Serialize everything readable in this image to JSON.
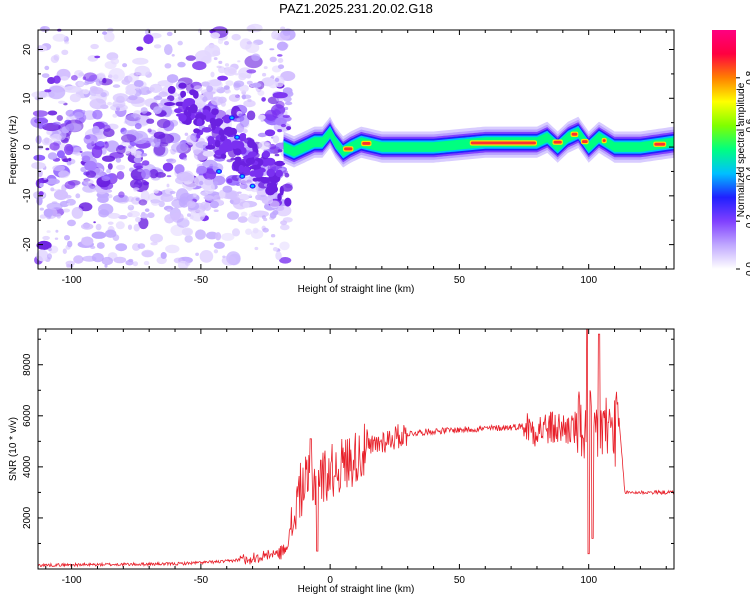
{
  "title": "PAZ1.2025.231.20.02.G18",
  "chart_data": [
    {
      "type": "heatmap",
      "xlabel": "Height of straight line (km)",
      "ylabel": "Frequency (Hz)",
      "xlim": [
        -113,
        133
      ],
      "ylim": [
        -25,
        24
      ],
      "xticks": [
        -100,
        -50,
        0,
        50,
        100
      ],
      "yticks": [
        -20,
        -10,
        0,
        10,
        20
      ],
      "colorbar": {
        "label": "Normalized spectral amplitude",
        "range": [
          0,
          1
        ],
        "ticks": [
          "0.0",
          "0.2",
          "0.4",
          "0.6",
          "0.8"
        ],
        "tick_values": [
          0,
          0.2,
          0.4,
          0.6,
          0.8
        ],
        "colormap": [
          "#ffffff",
          "#c0a8ff",
          "#8040ff",
          "#2020ff",
          "#00c0ff",
          "#00ff80",
          "#80ff00",
          "#ffff00",
          "#ff8000",
          "#ff0040",
          "#ff0080"
        ]
      },
      "ridge": {
        "x": [
          -18,
          -14,
          -10,
          -6,
          -3,
          0,
          2,
          5,
          8,
          12,
          20,
          40,
          60,
          75,
          80,
          84,
          88,
          92,
          96,
          100,
          104,
          110,
          120,
          133
        ],
        "y": [
          0,
          -1,
          0,
          1,
          1,
          3,
          1,
          -1,
          0,
          1,
          0,
          0,
          1,
          1,
          1,
          2,
          0,
          2,
          3,
          0,
          2,
          0,
          0,
          1
        ]
      }
    },
    {
      "type": "line",
      "xlabel": "Height of straight line (km)",
      "ylabel": "SNR (10 * v/v)",
      "xlim": [
        -113,
        133
      ],
      "ylim": [
        0,
        9400
      ],
      "xticks": [
        -100,
        -50,
        0,
        50,
        100
      ],
      "yticks": [
        2000,
        4000,
        6000,
        8000
      ],
      "color": "#e8202a",
      "envelope": {
        "x": [
          -113,
          -60,
          -40,
          -25,
          -18,
          -15,
          -12,
          -10,
          -5,
          0,
          5,
          10,
          20,
          30,
          40,
          50,
          60,
          70,
          75,
          78,
          85,
          95,
          100,
          105,
          110,
          112,
          114,
          133
        ],
        "y": [
          150,
          200,
          300,
          500,
          700,
          1500,
          3000,
          3300,
          3500,
          3800,
          4100,
          4400,
          5000,
          5300,
          5400,
          5450,
          5500,
          5550,
          5600,
          5500,
          5500,
          5500,
          5500,
          5500,
          5500,
          5500,
          3000,
          3000
        ]
      }
    }
  ]
}
